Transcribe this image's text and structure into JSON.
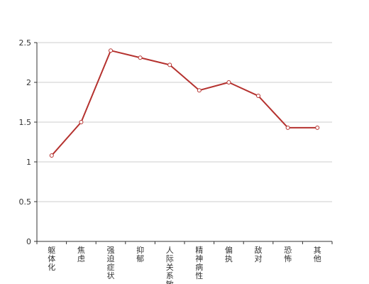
{
  "chart_data": {
    "type": "line",
    "title": "",
    "xlabel": "",
    "ylabel": "",
    "categories": [
      "躯体化",
      "焦虑",
      "强迫症状",
      "抑郁",
      "人际关系敏",
      "精神病性",
      "偏执",
      "敌对",
      "恐怖",
      "其他"
    ],
    "series": [
      {
        "values": [
          1.08,
          1.5,
          2.4,
          2.31,
          2.22,
          1.9,
          2.0,
          1.83,
          1.43,
          1.43
        ],
        "color": "#b5322f"
      }
    ],
    "ylim": [
      0,
      2.5
    ],
    "yticks": [
      0,
      0.5,
      1,
      1.5,
      2,
      2.5
    ],
    "ytick_labels": [
      "0",
      "0.5",
      "1",
      "1.5",
      "2",
      "2.5"
    ],
    "grid": true,
    "legend": "none"
  }
}
